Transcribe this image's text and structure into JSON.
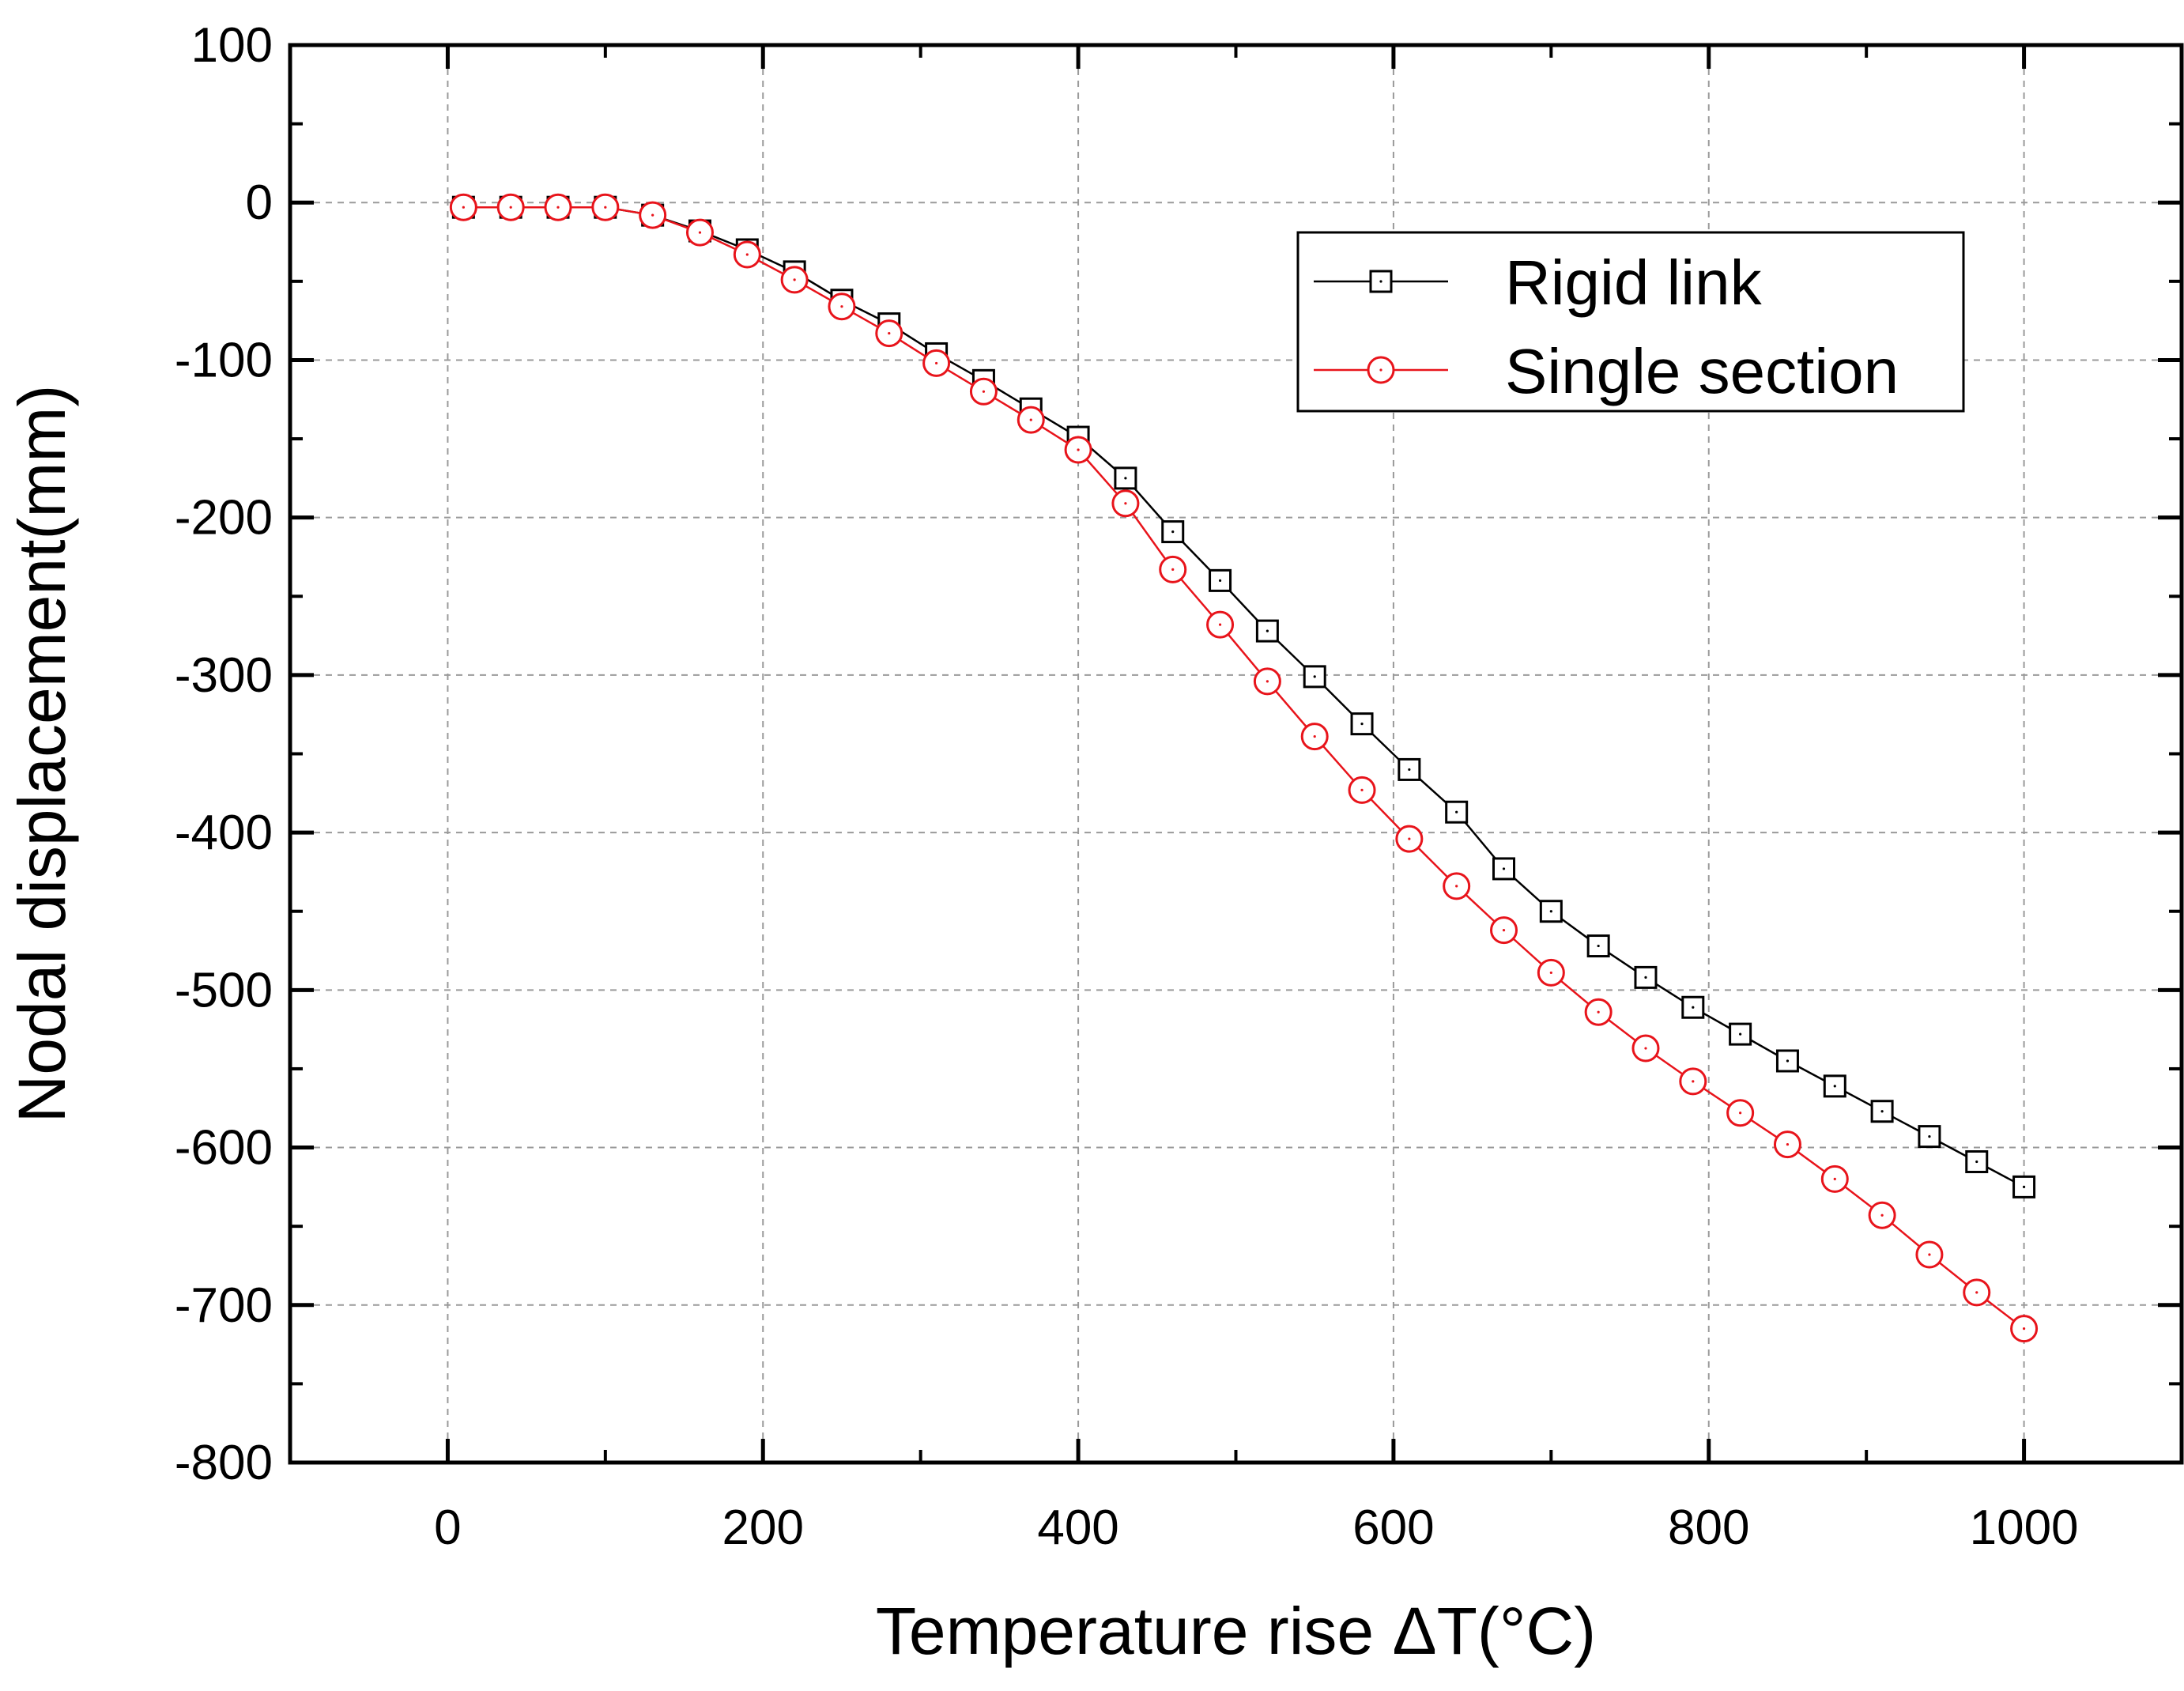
{
  "chart_data": {
    "type": "line",
    "title": "",
    "xlabel": "Temperature rise ΔT(°C)",
    "ylabel": "Nodal displacement(mm)",
    "xlim": [
      -100,
      1100
    ],
    "ylim": [
      -800,
      100
    ],
    "x_ticks": [
      0,
      200,
      400,
      600,
      800,
      1000
    ],
    "y_ticks": [
      100,
      0,
      -100,
      -200,
      -300,
      -400,
      -500,
      -600,
      -700,
      -800
    ],
    "grid": true,
    "legend_position": "top-right",
    "x": [
      10,
      40,
      70,
      100,
      130,
      160,
      190,
      220,
      250,
      280,
      310,
      340,
      370,
      400,
      430,
      460,
      490,
      520,
      550,
      580,
      610,
      640,
      670,
      700,
      730,
      760,
      790,
      820,
      850,
      880,
      910,
      940,
      970,
      1000
    ],
    "series": [
      {
        "name": "Rigid link",
        "color": "#000000",
        "marker": "square",
        "values": [
          -3,
          -3,
          -3,
          -3,
          -8,
          -18,
          -30,
          -44,
          -62,
          -77,
          -96,
          -113,
          -131,
          -149,
          -175,
          -209,
          -240,
          -272,
          -301,
          -331,
          -360,
          -387,
          -423,
          -450,
          -472,
          -492,
          -511,
          -528,
          -545,
          -561,
          -577,
          -593,
          -609,
          -625
        ]
      },
      {
        "name": "Single section",
        "color": "#e8141b",
        "marker": "circle",
        "values": [
          -3,
          -3,
          -3,
          -3,
          -8,
          -19,
          -33,
          -49,
          -66,
          -83,
          -102,
          -120,
          -138,
          -157,
          -191,
          -233,
          -268,
          -304,
          -339,
          -373,
          -404,
          -434,
          -462,
          -489,
          -514,
          -537,
          -558,
          -578,
          -598,
          -620,
          -643,
          -668,
          -692,
          -715
        ]
      }
    ]
  }
}
